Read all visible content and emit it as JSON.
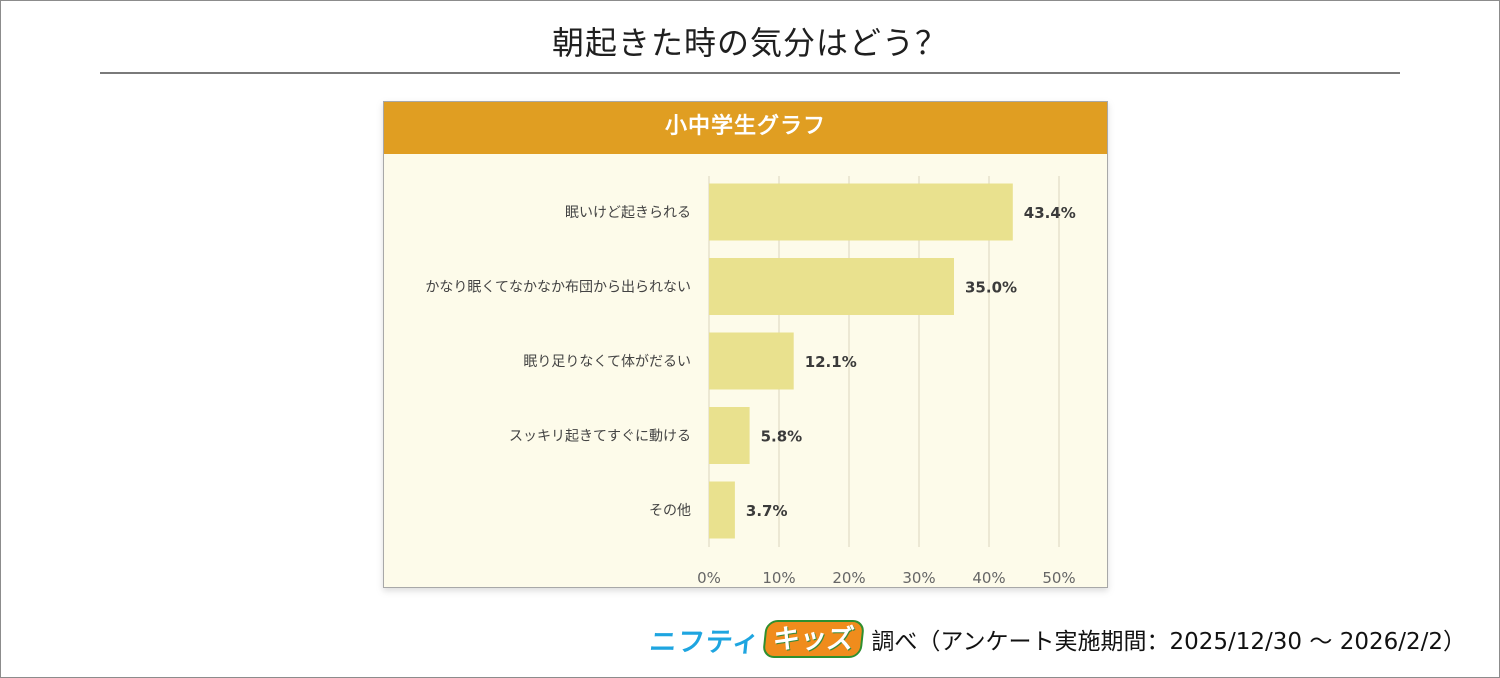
{
  "page": {
    "title": "朝起きた時の気分はどう？"
  },
  "panel": {
    "header": "小中学生グラフ"
  },
  "footer": {
    "logo_nifty": "ニフティ",
    "logo_kids": "キッズ",
    "source": "調べ（アンケート実施期間：2025/12/30 〜 2026/2/2）"
  },
  "colors": {
    "header_bg": "#e09e22",
    "bar_fill": "#e9e18e",
    "plot_bg": "#fdfbea",
    "grid": "#e6e2cc"
  },
  "chart_data": {
    "type": "bar",
    "orientation": "horizontal",
    "title": "小中学生グラフ",
    "categories": [
      "眠いけど起きられる",
      "かなり眠くてなかなか布団から出られない",
      "眠り足りなくて体がだるい",
      "スッキリ起きてすぐに動ける",
      "その他"
    ],
    "values": [
      43.4,
      35.0,
      12.1,
      5.8,
      3.7
    ],
    "value_labels": [
      "43.4%",
      "35.0%",
      "12.1%",
      "5.8%",
      "3.7%"
    ],
    "x_ticks": [
      0,
      10,
      20,
      30,
      40,
      50
    ],
    "x_tick_labels": [
      "0%",
      "10%",
      "20%",
      "30%",
      "40%",
      "50%"
    ],
    "xlim": [
      0,
      50
    ],
    "grid": true,
    "xlabel": "",
    "ylabel": ""
  }
}
